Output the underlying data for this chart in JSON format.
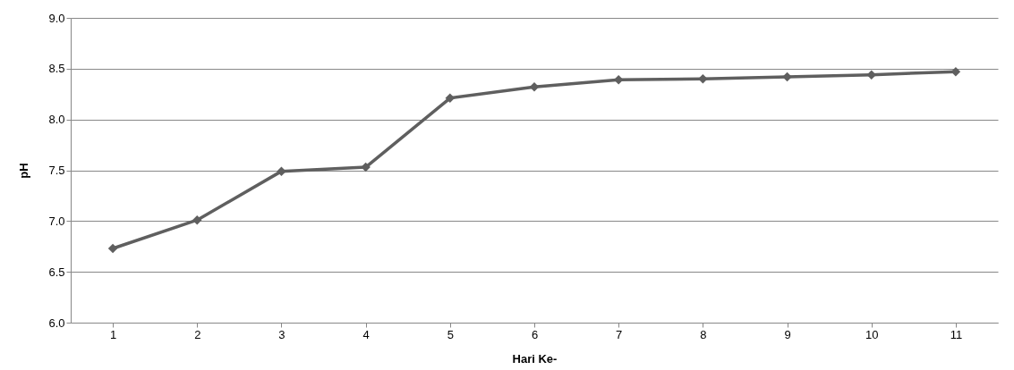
{
  "chart_data": {
    "type": "line",
    "xlabel": "Hari Ke-",
    "ylabel": "pH",
    "categories": [
      "1",
      "2",
      "3",
      "4",
      "5",
      "6",
      "7",
      "8",
      "9",
      "10",
      "11"
    ],
    "series": [
      {
        "color": "#5f5f5f",
        "values": [
          6.73,
          7.01,
          7.49,
          7.53,
          8.21,
          8.32,
          8.39,
          8.4,
          8.42,
          8.44,
          8.47
        ]
      }
    ],
    "ylim": [
      6.0,
      9.0
    ],
    "yticks": [
      {
        "value": 6,
        "label": "6.0"
      },
      6.5,
      {
        "value": 7,
        "label": "7.0"
      },
      7.5,
      {
        "value": 8,
        "label": "8.0"
      },
      8.5,
      {
        "value": 9,
        "label": "9.0"
      }
    ],
    "grid": "y",
    "marker": "diamond",
    "line_style": "solid"
  }
}
